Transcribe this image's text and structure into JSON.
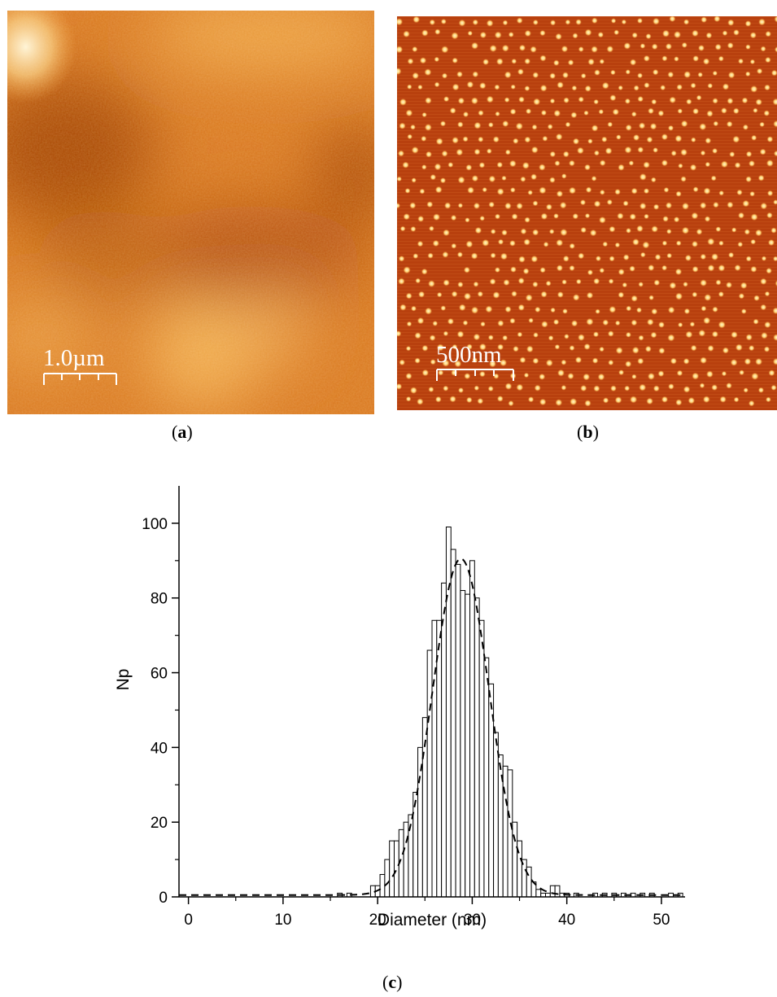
{
  "panel_a": {
    "scale_label": "1.0µm",
    "caption_letter": "a",
    "colors": {
      "dark": "#b04a06",
      "mid": "#d9771d",
      "light": "#f5b04a",
      "highlight": "#fff2cc"
    }
  },
  "panel_b": {
    "scale_label": "500nm",
    "caption_letter": "b",
    "colors": {
      "background": "#b8400e",
      "dot": "#ffc25a",
      "dot_core": "#fff4c8"
    }
  },
  "panel_c": {
    "caption_letter": "c"
  },
  "chart_data": {
    "type": "bar",
    "xlabel": "Diameter (nm)",
    "ylabel": "Np",
    "xlim": [
      -1,
      52.5
    ],
    "ylim": [
      0,
      110
    ],
    "xticks": [
      0,
      10,
      20,
      30,
      40,
      50
    ],
    "yticks": [
      0,
      20,
      40,
      60,
      80,
      100
    ],
    "bin_width": 0.5,
    "bars": [
      [
        16,
        1
      ],
      [
        17,
        1
      ],
      [
        19.5,
        3
      ],
      [
        20,
        3
      ],
      [
        20.5,
        6
      ],
      [
        21,
        10
      ],
      [
        21.5,
        15
      ],
      [
        22,
        15
      ],
      [
        22.5,
        18
      ],
      [
        23,
        20
      ],
      [
        23.5,
        22
      ],
      [
        24,
        28
      ],
      [
        24.5,
        40
      ],
      [
        25,
        48
      ],
      [
        25.5,
        66
      ],
      [
        26,
        74
      ],
      [
        26.5,
        74
      ],
      [
        27,
        84
      ],
      [
        27.5,
        99
      ],
      [
        28,
        93
      ],
      [
        28.5,
        89
      ],
      [
        29,
        82
      ],
      [
        29.5,
        81
      ],
      [
        30,
        90
      ],
      [
        30.5,
        80
      ],
      [
        31,
        74
      ],
      [
        31.5,
        64
      ],
      [
        32,
        57
      ],
      [
        32.5,
        44
      ],
      [
        33,
        38
      ],
      [
        33.5,
        35
      ],
      [
        34,
        34
      ],
      [
        34.5,
        20
      ],
      [
        35,
        15
      ],
      [
        35.5,
        10
      ],
      [
        36,
        8
      ],
      [
        36.5,
        4
      ],
      [
        37,
        2
      ],
      [
        37.5,
        1
      ],
      [
        38,
        1
      ],
      [
        38.5,
        3
      ],
      [
        39,
        3
      ],
      [
        39.5,
        1
      ],
      [
        40,
        1
      ],
      [
        41,
        1
      ],
      [
        43,
        1
      ],
      [
        44,
        1
      ],
      [
        45,
        1
      ],
      [
        46,
        1
      ],
      [
        47,
        1
      ],
      [
        48,
        1
      ],
      [
        49,
        1
      ],
      [
        51,
        1
      ],
      [
        52,
        1
      ]
    ],
    "fit_curve": {
      "style": "dashed",
      "type": "gaussian",
      "baseline": 0.5,
      "peak": 90,
      "center": 28.8,
      "sigma": 3.0
    }
  }
}
